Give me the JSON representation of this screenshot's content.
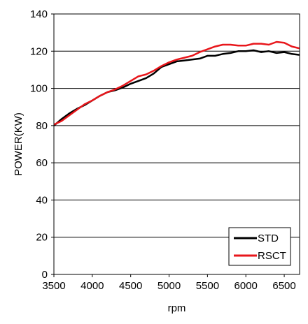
{
  "chart_data": {
    "type": "line",
    "xlabel": "rpm",
    "ylabel": "POWER(KW)",
    "xlim": [
      3500,
      6700
    ],
    "ylim": [
      0,
      140
    ],
    "xticks": [
      3500,
      4000,
      4500,
      5000,
      5500,
      6000,
      6500
    ],
    "yticks": [
      0,
      20,
      40,
      60,
      80,
      100,
      120,
      140
    ],
    "grid": "horizontal",
    "legend_position": "bottom-right",
    "series": [
      {
        "name": "STD",
        "color": "#000000",
        "x": [
          3500,
          3600,
          3700,
          3800,
          3900,
          4000,
          4100,
          4200,
          4300,
          4400,
          4500,
          4600,
          4700,
          4800,
          4900,
          5000,
          5100,
          5200,
          5300,
          5400,
          5500,
          5600,
          5700,
          5800,
          5900,
          6000,
          6100,
          6200,
          6300,
          6400,
          6500,
          6600,
          6700
        ],
        "values": [
          80,
          83.5,
          86.5,
          89,
          91,
          93.5,
          96,
          98,
          99,
          100.5,
          102.5,
          104,
          105.5,
          108,
          111.5,
          113,
          114.5,
          115,
          115.5,
          116,
          117.5,
          117.5,
          118.5,
          119,
          120,
          120,
          120.5,
          119.5,
          120,
          119,
          119.5,
          118.5,
          118
        ]
      },
      {
        "name": "RSCT",
        "color": "#e8161b",
        "x": [
          3500,
          3600,
          3700,
          3800,
          3900,
          4000,
          4100,
          4200,
          4300,
          4400,
          4500,
          4600,
          4700,
          4800,
          4900,
          5000,
          5100,
          5200,
          5300,
          5400,
          5500,
          5600,
          5700,
          5800,
          5900,
          6000,
          6100,
          6200,
          6300,
          6400,
          6500,
          6600,
          6700
        ],
        "values": [
          80.5,
          82.5,
          85.5,
          88.5,
          91.5,
          93.5,
          96,
          98,
          99.5,
          101.5,
          104,
          106.5,
          107.5,
          109.5,
          112,
          114,
          115.5,
          116.5,
          117.5,
          119.5,
          121,
          122.5,
          123.5,
          123.5,
          123,
          123,
          124,
          124,
          123.5,
          125,
          124.5,
          122.5,
          121.5
        ]
      }
    ]
  }
}
